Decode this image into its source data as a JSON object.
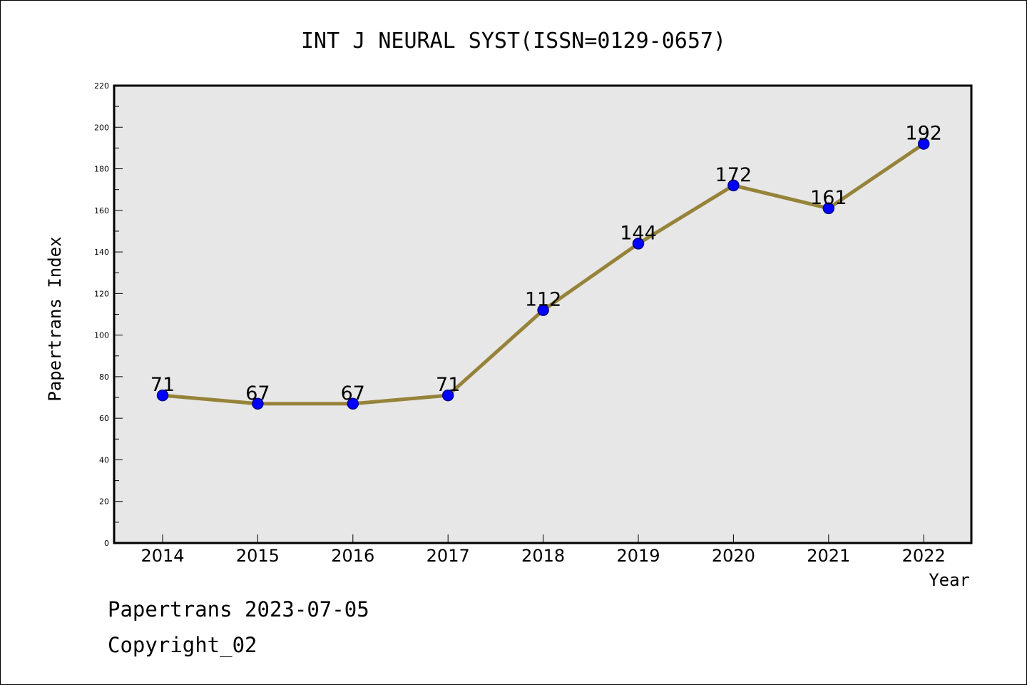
{
  "colors": {
    "plot_background": "#e7e7e7",
    "line": "#96833a",
    "marker": "#0000ff",
    "marker_edge": "#00008b",
    "axis": "#000000"
  },
  "footer": {
    "date_text": "Papertrans 2023-07-05",
    "copyright_text": "Copyright_02"
  },
  "chart_data": {
    "type": "line",
    "title": "INT J NEURAL SYST(ISSN=0129-0657)",
    "xlabel": "Year",
    "ylabel": "Papertrans Index",
    "categories": [
      "2014",
      "2015",
      "2016",
      "2017",
      "2018",
      "2019",
      "2020",
      "2021",
      "2022"
    ],
    "series": [
      {
        "values": [
          71,
          67,
          67,
          71,
          112,
          144,
          172,
          161,
          192
        ]
      }
    ],
    "data_labels": [
      "71",
      "67",
      "67",
      "71",
      "112",
      "144",
      "172",
      "161",
      "192"
    ],
    "ylim": [
      0,
      220
    ],
    "yticks": [
      0,
      20,
      40,
      60,
      80,
      100,
      120,
      140,
      160,
      180,
      200,
      220
    ],
    "grid": false,
    "legend": "none"
  }
}
